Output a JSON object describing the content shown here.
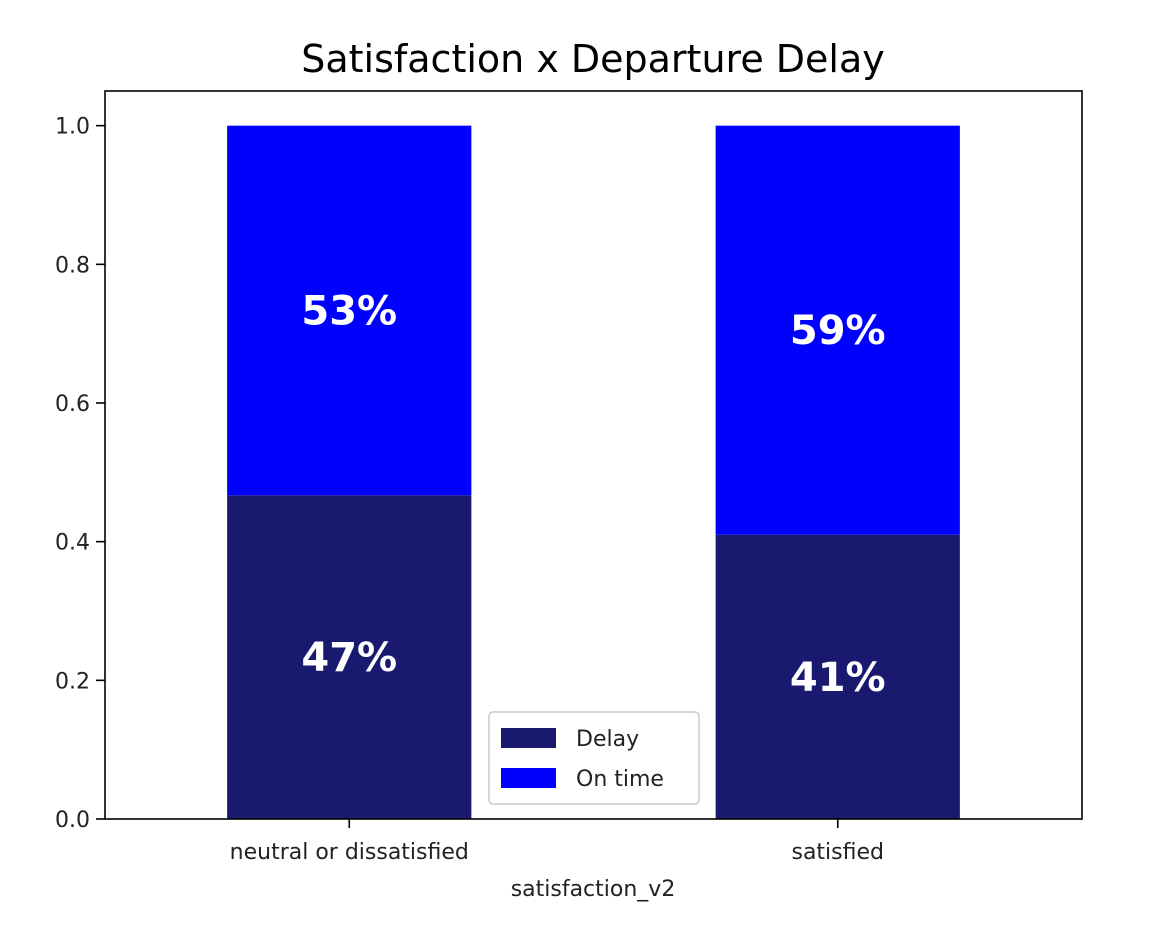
{
  "chart_data": {
    "type": "bar",
    "stacked": true,
    "title": "Satisfaction x Departure Delay",
    "xlabel": "satisfaction_v2",
    "ylabel": "",
    "categories": [
      "neutral or dissatisfied",
      "satisfied"
    ],
    "series": [
      {
        "name": "Delay",
        "color": "#191970",
        "values": [
          0.467,
          0.41
        ],
        "labels": [
          "47%",
          "41%"
        ]
      },
      {
        "name": "On time",
        "color": "#0000ff",
        "values": [
          0.533,
          0.59
        ],
        "labels": [
          "53%",
          "59%"
        ]
      }
    ],
    "ylim": [
      0,
      1.05
    ],
    "yticks": [
      "0.0",
      "0.2",
      "0.4",
      "0.6",
      "0.8",
      "1.0"
    ],
    "legend_position": "bottom-center",
    "grid": false
  }
}
